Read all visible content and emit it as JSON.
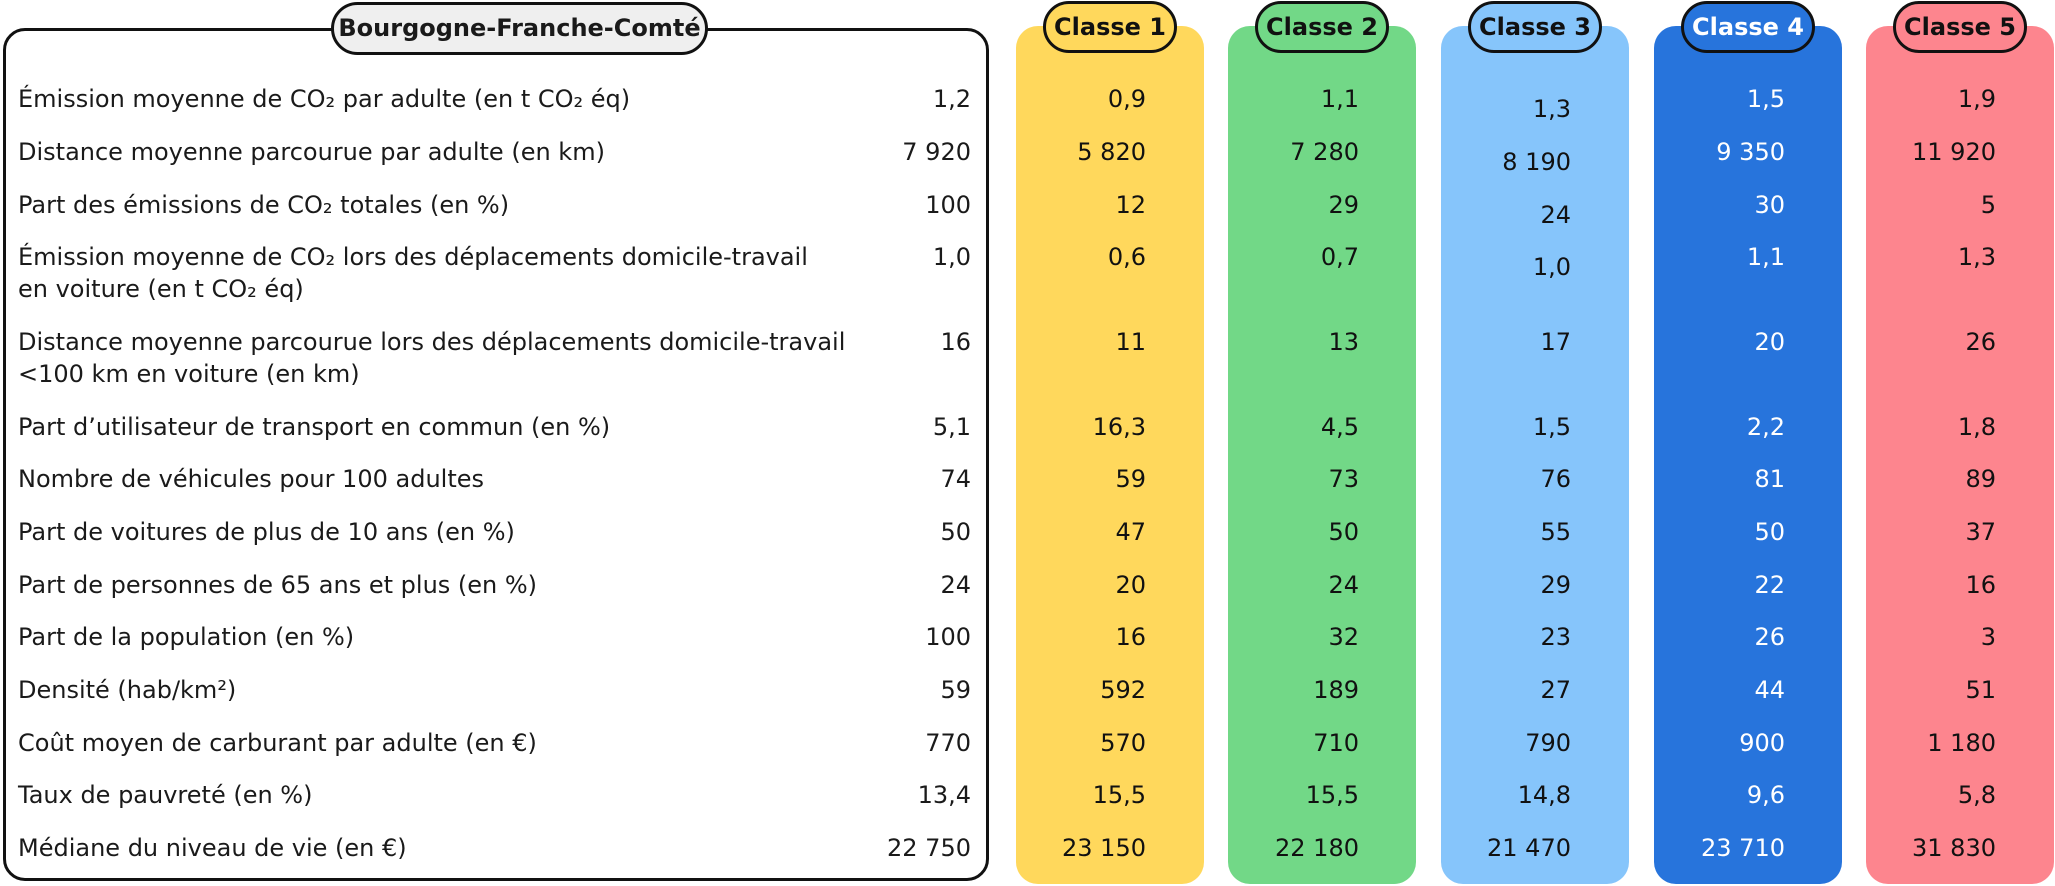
{
  "chart_data": {
    "type": "table",
    "region": "Bourgogne-Franche-Comté",
    "classes": [
      {
        "name": "Classe 1",
        "color": "#ffd85c",
        "text_color": "#111111"
      },
      {
        "name": "Classe 2",
        "color": "#72d887",
        "text_color": "#111111"
      },
      {
        "name": "Classe 3",
        "color": "#86c5fb",
        "text_color": "#111111"
      },
      {
        "name": "Classe 4",
        "color": "#2774dc",
        "text_color": "#ffffff"
      },
      {
        "name": "Classe 5",
        "color": "#fd858e",
        "text_color": "#111111"
      }
    ],
    "rows": [
      {
        "label": [
          "Émission moyenne de CO₂ par adulte (en t CO₂ éq)"
        ],
        "region": "1,2",
        "values": [
          "0,9",
          "1,1",
          "1,3",
          "1,5",
          "1,9"
        ]
      },
      {
        "label": [
          "Distance moyenne parcourue par adulte (en km)"
        ],
        "region": "7 920",
        "values": [
          "5 820",
          "7 280",
          "8 190",
          "9 350",
          "11 920"
        ]
      },
      {
        "label": [
          "Part des émissions de CO₂ totales (en %)"
        ],
        "region": "100",
        "values": [
          "12",
          "29",
          "24",
          "30",
          "5"
        ]
      },
      {
        "label": [
          "Émission moyenne de CO₂ lors des déplacements domicile-travail",
          "en voiture (en t CO₂ éq)"
        ],
        "region": "1,0",
        "values": [
          "0,6",
          "0,7",
          "1,0",
          "1,1",
          "1,3"
        ]
      },
      {
        "label": [
          "Distance moyenne parcourue lors des déplacements domicile-travail",
          "<100 km en voiture (en km)"
        ],
        "region": "16",
        "values": [
          "11",
          "13",
          "17",
          "20",
          "26"
        ]
      },
      {
        "label": [
          "Part d’utilisateur de transport en commun (en %)"
        ],
        "region": "5,1",
        "values": [
          "16,3",
          "4,5",
          "1,5",
          "2,2",
          "1,8"
        ]
      },
      {
        "label": [
          "Nombre de véhicules pour 100 adultes"
        ],
        "region": "74",
        "values": [
          "59",
          "73",
          "76",
          "81",
          "89"
        ]
      },
      {
        "label": [
          "Part de voitures de plus de 10 ans (en %)"
        ],
        "region": "50",
        "values": [
          "47",
          "50",
          "55",
          "50",
          "37"
        ]
      },
      {
        "label": [
          "Part de personnes de 65 ans et plus (en %)"
        ],
        "region": "24",
        "values": [
          "20",
          "24",
          "29",
          "22",
          "16"
        ]
      },
      {
        "label": [
          "Part de la population (en %)"
        ],
        "region": "100",
        "values": [
          "16",
          "32",
          "23",
          "26",
          "3"
        ]
      },
      {
        "label": [
          "Densité (hab/km²)"
        ],
        "region": "59",
        "values": [
          "592",
          "189",
          "27",
          "44",
          "51"
        ]
      },
      {
        "label": [
          "Coût moyen de carburant par adulte (en €)"
        ],
        "region": "770",
        "values": [
          "570",
          "710",
          "790",
          "900",
          "1 180"
        ]
      },
      {
        "label": [
          "Taux de pauvreté (en %)"
        ],
        "region": "13,4",
        "values": [
          "15,5",
          "15,5",
          "14,8",
          "9,6",
          "5,8"
        ]
      },
      {
        "label": [
          "Médiane du niveau de vie (en €)"
        ],
        "region": "22 750",
        "values": [
          "23 150",
          "22 180",
          "21 470",
          "23 710",
          "31 830"
        ]
      }
    ]
  }
}
